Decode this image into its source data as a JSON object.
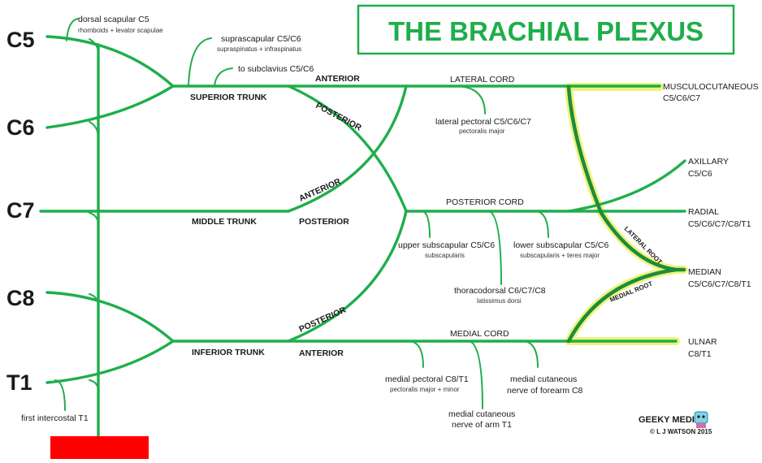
{
  "title": "THE BRACHIAL PLEXUS",
  "colors": {
    "nerve": "#1fae4b",
    "highlight": "#eef37a",
    "redbar": "#ff0000"
  },
  "roots": [
    "C5",
    "C6",
    "C7",
    "C8",
    "T1"
  ],
  "trunks": {
    "superior": "SUPERIOR TRUNK",
    "middle": "MIDDLE TRUNK",
    "inferior": "INFERIOR TRUNK"
  },
  "divisions": {
    "anterior": "ANTERIOR",
    "posterior": "POSTERIOR"
  },
  "cords": {
    "lateral": "LATERAL CORD",
    "posterior": "POSTERIOR CORD",
    "medial": "MEDIAL CORD"
  },
  "roots_median": {
    "lateral": "LATERAL ROOT",
    "medial": "MEDIAL ROOT"
  },
  "branches": {
    "dorsal_scapular": {
      "name": "dorsal scapular C5",
      "muscles": "rhomboids + levator scapulae"
    },
    "suprascapular": {
      "name": "suprascapular C5/C6",
      "muscles": "supraspinatus + infraspinatus"
    },
    "subclavius": {
      "name": "to subclavius C5/C6"
    },
    "lateral_pectoral": {
      "name": "lateral pectoral C5/C6/C7",
      "muscles": "pectoralis major"
    },
    "upper_subscapular": {
      "name": "upper subscapular C5/C6",
      "muscles": "subscapularis"
    },
    "lower_subscapular": {
      "name": "lower subscapular C5/C6",
      "muscles": "subscapularis + teres major"
    },
    "thoracodorsal": {
      "name": "thoracodorsal C6/C7/C8",
      "muscles": "latissimus dorsi"
    },
    "medial_pectoral": {
      "name": "medial pectoral C8/T1",
      "muscles": "pectoralis major + minor"
    },
    "medial_cutaneous_forearm": {
      "line1": "medial cutaneous",
      "line2": "nerve of forearm C8"
    },
    "medial_cutaneous_arm": {
      "line1": "medial cutaneous",
      "line2": "nerve of arm T1"
    },
    "first_intercostal": {
      "name": "first intercostal T1"
    }
  },
  "terminal": {
    "musculocutaneous": {
      "name": "MUSCULOCUTANEOUS",
      "roots": "C5/C6/C7"
    },
    "axillary": {
      "name": "AXILLARY",
      "roots": "C5/C6"
    },
    "radial": {
      "name": "RADIAL",
      "roots": "C5/C6/C7/C8/T1"
    },
    "median": {
      "name": "MEDIAN",
      "roots": "C5/C6/C7/C8/T1"
    },
    "ulnar": {
      "name": "ULNAR",
      "roots": "C8/T1"
    }
  },
  "credit": {
    "brand": "GEEKY MEDICS",
    "copyright": "© L J WATSON 2015"
  }
}
